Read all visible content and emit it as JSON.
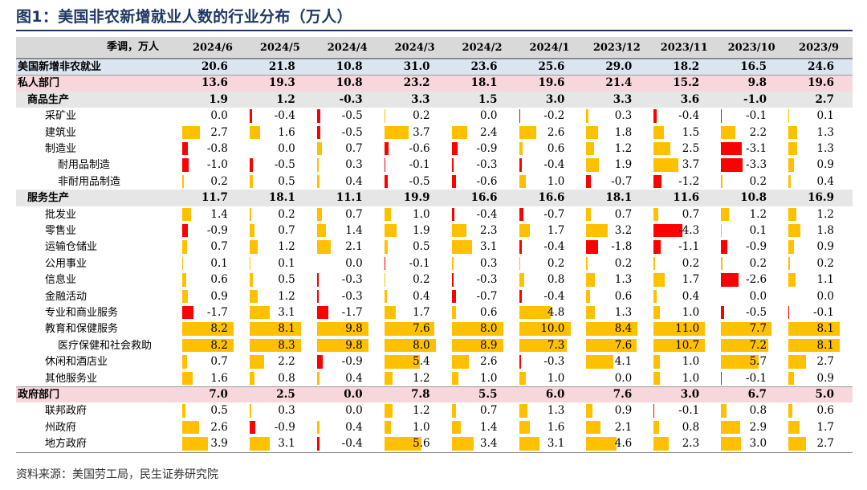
{
  "title": "图1：美国非农新增就业人数的行业分布（万人）",
  "source": "资料来源：美国劳工局，民生证券研究院",
  "colors": {
    "header_bg": "#d9d9d9",
    "total_bg": "#dbe5f1",
    "sector_bg": "#f8d7dc",
    "group_bg": "#e6e6e6",
    "positive_bar": "#ffc000",
    "negative_bar": "#ff0000",
    "title_color": "#1f3864"
  },
  "chart_data": {
    "type": "table",
    "title": "图1：美国非农新增就业人数的行业分布（万人）",
    "header_label": "季调，万人",
    "columns": [
      "2024/6",
      "2024/5",
      "2024/4",
      "2024/3",
      "2024/2",
      "2024/1",
      "2023/12",
      "2023/11",
      "2023/10",
      "2023/9"
    ],
    "rows": [
      {
        "label": "美国新增非农就业",
        "level": 0,
        "style": "total",
        "bars": false,
        "values": [
          "20.6",
          "21.8",
          "10.8",
          "31.0",
          "23.6",
          "25.6",
          "29.0",
          "18.2",
          "16.5",
          "24.6"
        ]
      },
      {
        "label": "私人部门",
        "level": 0,
        "style": "sector",
        "bars": false,
        "values": [
          "13.6",
          "19.3",
          "10.8",
          "23.2",
          "18.1",
          "19.6",
          "21.4",
          "15.2",
          "9.8",
          "19.6"
        ]
      },
      {
        "label": "商品生产",
        "level": 1,
        "style": "group",
        "bars": false,
        "values": [
          "1.9",
          "1.2",
          "-0.3",
          "3.3",
          "1.5",
          "3.0",
          "3.3",
          "3.6",
          "-1.0",
          "2.7"
        ]
      },
      {
        "label": "采矿业",
        "level": 2,
        "style": "normal",
        "bars": true,
        "values": [
          "0.0",
          "-0.4",
          "-0.5",
          "0.2",
          "0.0",
          "-0.2",
          "0.3",
          "-0.4",
          "-0.1",
          "0.1"
        ]
      },
      {
        "label": "建筑业",
        "level": 2,
        "style": "normal",
        "bars": true,
        "values": [
          "2.7",
          "1.6",
          "-0.5",
          "3.7",
          "2.4",
          "2.6",
          "1.8",
          "1.5",
          "2.2",
          "1.3"
        ]
      },
      {
        "label": "制造业",
        "level": 2,
        "style": "normal",
        "bars": true,
        "values": [
          "-0.8",
          "0.0",
          "0.7",
          "-0.6",
          "-0.9",
          "0.6",
          "1.2",
          "2.5",
          "-3.1",
          "1.3"
        ]
      },
      {
        "label": "耐用品制造",
        "level": 3,
        "style": "normal",
        "bars": true,
        "values": [
          "-1.0",
          "-0.5",
          "0.3",
          "-0.1",
          "-0.3",
          "-0.4",
          "1.9",
          "3.7",
          "-3.3",
          "0.9"
        ]
      },
      {
        "label": "非耐用品制造",
        "level": 3,
        "style": "normal",
        "bars": true,
        "values": [
          "0.2",
          "0.5",
          "0.4",
          "-0.5",
          "-0.6",
          "1.0",
          "-0.7",
          "-1.2",
          "0.2",
          "0.4"
        ]
      },
      {
        "label": "服务生产",
        "level": 1,
        "style": "group",
        "bars": false,
        "values": [
          "11.7",
          "18.1",
          "11.1",
          "19.9",
          "16.6",
          "16.6",
          "18.1",
          "11.6",
          "10.8",
          "16.9"
        ]
      },
      {
        "label": "批发业",
        "level": 2,
        "style": "normal",
        "bars": true,
        "values": [
          "1.4",
          "0.2",
          "0.7",
          "1.0",
          "-0.4",
          "-0.7",
          "0.7",
          "0.7",
          "1.2",
          "1.2"
        ]
      },
      {
        "label": "零售业",
        "level": 2,
        "style": "normal",
        "bars": true,
        "values": [
          "-0.9",
          "0.7",
          "1.4",
          "1.9",
          "2.3",
          "1.7",
          "3.2",
          "-4.3",
          "0.1",
          "1.8"
        ]
      },
      {
        "label": "运输仓储业",
        "level": 2,
        "style": "normal",
        "bars": true,
        "values": [
          "0.7",
          "1.2",
          "2.1",
          "0.5",
          "3.1",
          "-0.4",
          "-1.8",
          "-1.1",
          "-0.9",
          "0.9"
        ]
      },
      {
        "label": "公用事业",
        "level": 2,
        "style": "normal",
        "bars": true,
        "values": [
          "0.1",
          "0.1",
          "0.0",
          "-0.1",
          "0.3",
          "0.2",
          "0.2",
          "0.2",
          "0.2",
          "0.2"
        ]
      },
      {
        "label": "信息业",
        "level": 2,
        "style": "normal",
        "bars": true,
        "values": [
          "0.6",
          "0.5",
          "-0.3",
          "0.2",
          "-0.3",
          "0.8",
          "1.3",
          "1.7",
          "-2.6",
          "1.1"
        ]
      },
      {
        "label": "金融活动",
        "level": 2,
        "style": "normal",
        "bars": true,
        "values": [
          "0.9",
          "1.2",
          "-0.3",
          "0.4",
          "-0.7",
          "-0.4",
          "0.6",
          "0.4",
          "0.0",
          "0.0"
        ]
      },
      {
        "label": "专业和商业服务",
        "level": 2,
        "style": "normal",
        "bars": true,
        "values": [
          "-1.7",
          "3.1",
          "-1.7",
          "1.7",
          "0.6",
          "4.8",
          "1.3",
          "1.0",
          "-0.5",
          "-0.1"
        ]
      },
      {
        "label": "教育和保健服务",
        "level": 2,
        "style": "normal",
        "bars": true,
        "values": [
          "8.2",
          "8.1",
          "9.8",
          "7.6",
          "8.0",
          "10.0",
          "8.4",
          "11.0",
          "7.7",
          "8.1"
        ]
      },
      {
        "label": "医疗保健和社会救助",
        "level": 3,
        "style": "normal",
        "bars": true,
        "values": [
          "8.2",
          "8.3",
          "9.8",
          "8.0",
          "8.9",
          "7.3",
          "7.6",
          "10.7",
          "7.2",
          "8.1"
        ]
      },
      {
        "label": "休闲和酒店业",
        "level": 2,
        "style": "normal",
        "bars": true,
        "values": [
          "0.7",
          "2.2",
          "-0.9",
          "5.4",
          "2.6",
          "-0.3",
          "4.1",
          "1.0",
          "5.7",
          "2.7"
        ]
      },
      {
        "label": "其他服务业",
        "level": 2,
        "style": "normal",
        "bars": true,
        "values": [
          "1.6",
          "0.8",
          "0.4",
          "1.2",
          "1.0",
          "1.0",
          "0.0",
          "1.0",
          "-0.1",
          "0.9"
        ]
      },
      {
        "label": "政府部门",
        "level": 0,
        "style": "sector",
        "bars": false,
        "values": [
          "7.0",
          "2.5",
          "0.0",
          "7.8",
          "5.5",
          "6.0",
          "7.6",
          "3.0",
          "6.7",
          "5.0"
        ]
      },
      {
        "label": "联邦政府",
        "level": 2,
        "style": "normal",
        "bars": true,
        "values": [
          "0.5",
          "0.3",
          "0.0",
          "1.2",
          "0.7",
          "1.3",
          "0.9",
          "-0.1",
          "0.8",
          "0.6"
        ]
      },
      {
        "label": "州政府",
        "level": 2,
        "style": "normal",
        "bars": true,
        "values": [
          "2.6",
          "-0.9",
          "0.4",
          "1.0",
          "1.4",
          "1.6",
          "2.1",
          "0.8",
          "2.9",
          "1.7"
        ]
      },
      {
        "label": "地方政府",
        "level": 2,
        "style": "normal",
        "bars": true,
        "values": [
          "3.9",
          "3.1",
          "-0.4",
          "5.6",
          "3.4",
          "3.1",
          "4.6",
          "2.3",
          "3.0",
          "2.7"
        ]
      }
    ]
  }
}
